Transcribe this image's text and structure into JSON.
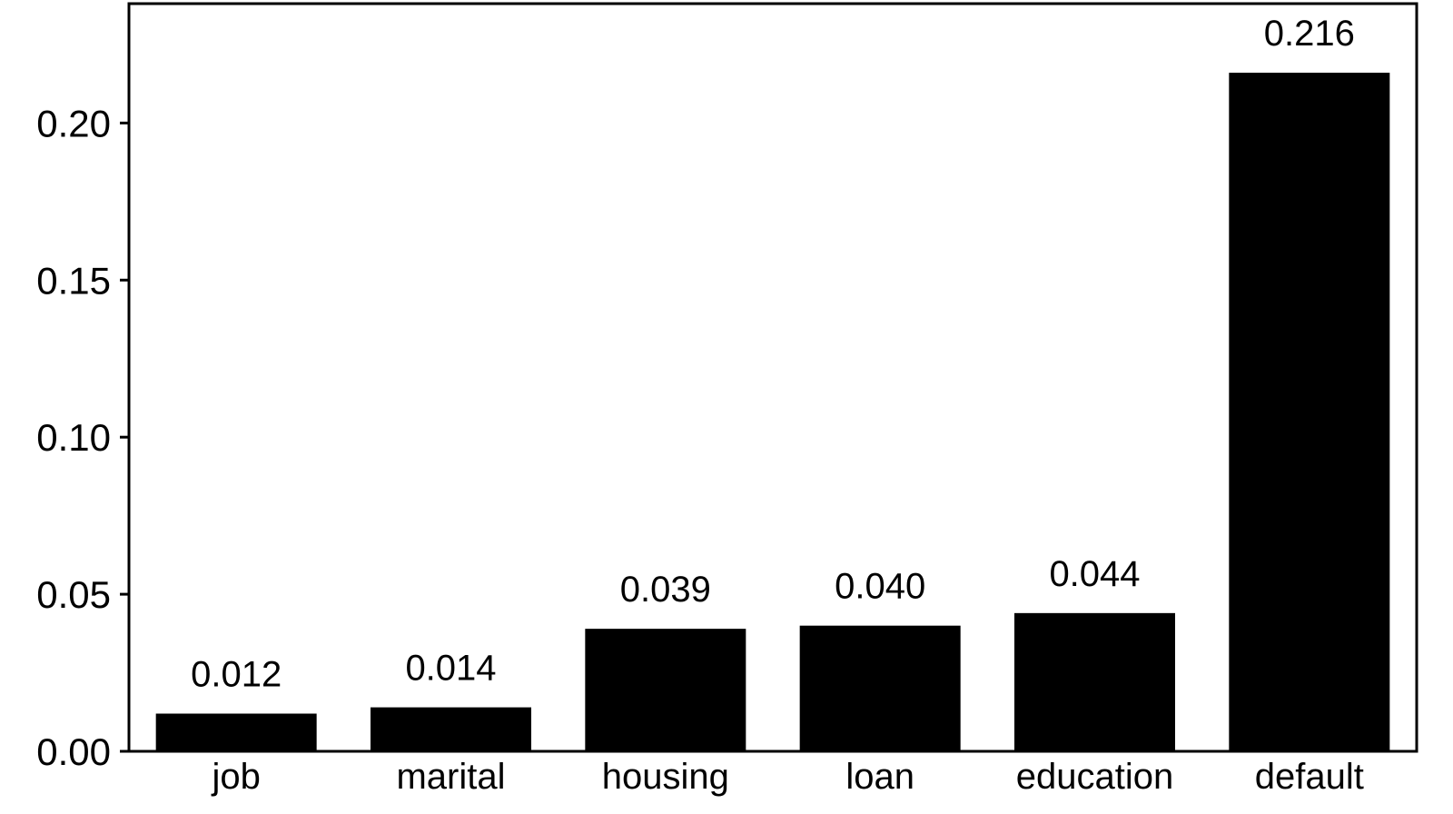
{
  "chart_data": {
    "type": "bar",
    "categories": [
      "job",
      "marital",
      "housing",
      "loan",
      "education",
      "default"
    ],
    "values": [
      0.012,
      0.014,
      0.039,
      0.04,
      0.044,
      0.216
    ],
    "data_labels": [
      "0.012",
      "0.014",
      "0.039",
      "0.040",
      "0.044",
      "0.216"
    ],
    "yticks": [
      0.0,
      0.05,
      0.1,
      0.15,
      0.2
    ],
    "ytick_labels": [
      "0.00",
      "0.05",
      "0.10",
      "0.15",
      "0.20"
    ],
    "ylim": [
      0,
      0.238
    ],
    "title": "",
    "xlabel": "",
    "ylabel": "",
    "grid": false,
    "bar_color": "#000000",
    "frame_color": "#000000"
  }
}
